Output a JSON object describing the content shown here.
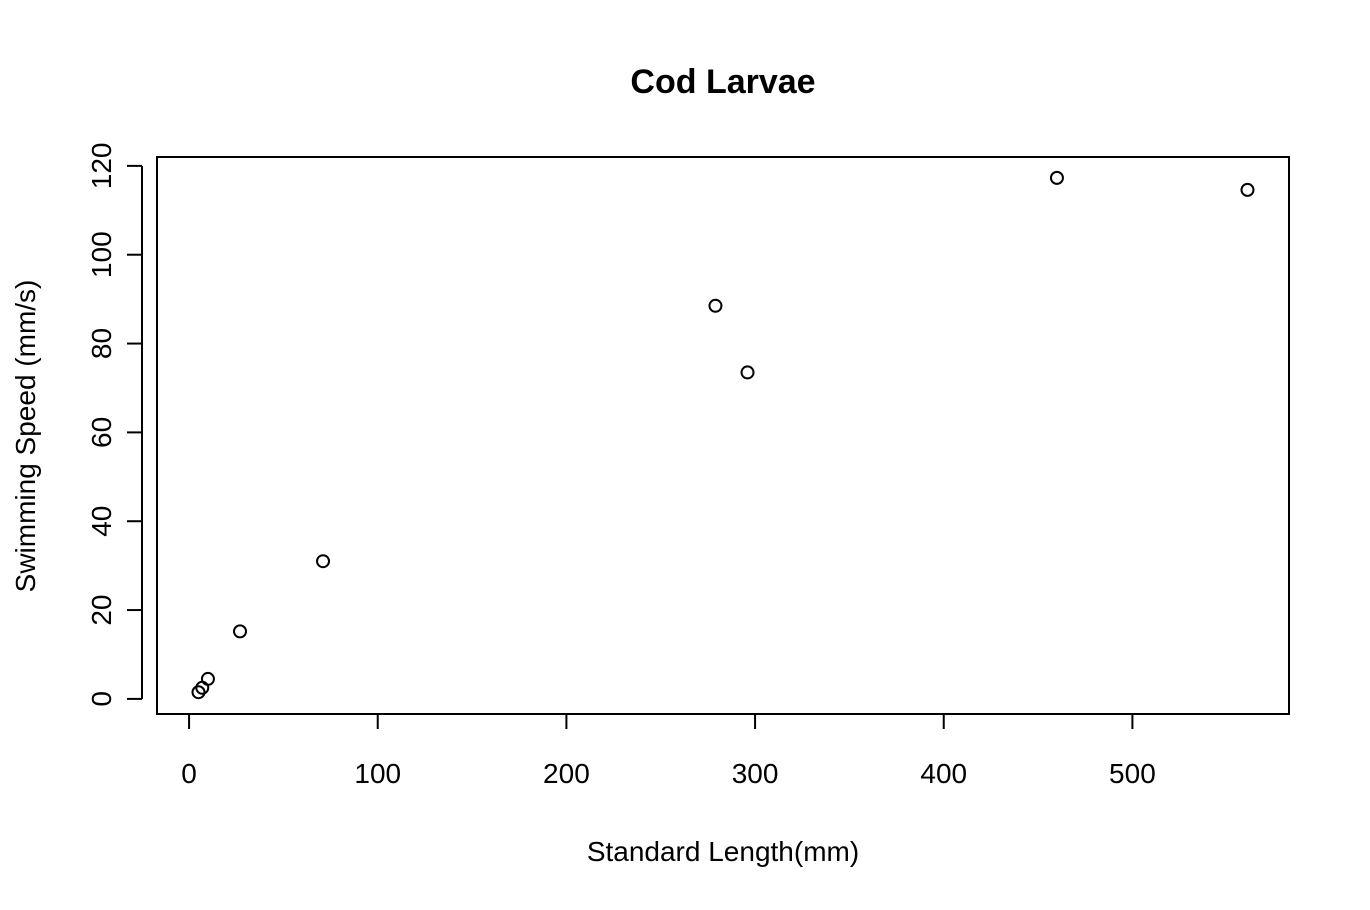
{
  "chart_data": {
    "type": "scatter",
    "title": "Cod Larvae",
    "xlabel": "Standard Length(mm)",
    "ylabel": "Swimming Speed (mm/s)",
    "xlim": [
      -17,
      583
    ],
    "ylim": [
      -3.4,
      122
    ],
    "xticks": [
      0,
      100,
      200,
      300,
      400,
      500
    ],
    "yticks": [
      0,
      20,
      40,
      60,
      80,
      100,
      120
    ],
    "grid": false,
    "series": [
      {
        "points": [
          {
            "x": 5,
            "y": 1.5
          },
          {
            "x": 7,
            "y": 2.5
          },
          {
            "x": 10,
            "y": 4.5
          },
          {
            "x": 27,
            "y": 15.2
          },
          {
            "x": 71,
            "y": 31.0
          },
          {
            "x": 279,
            "y": 88.5
          },
          {
            "x": 296,
            "y": 73.5
          },
          {
            "x": 460,
            "y": 117.3
          },
          {
            "x": 561,
            "y": 114.6
          }
        ]
      }
    ]
  }
}
